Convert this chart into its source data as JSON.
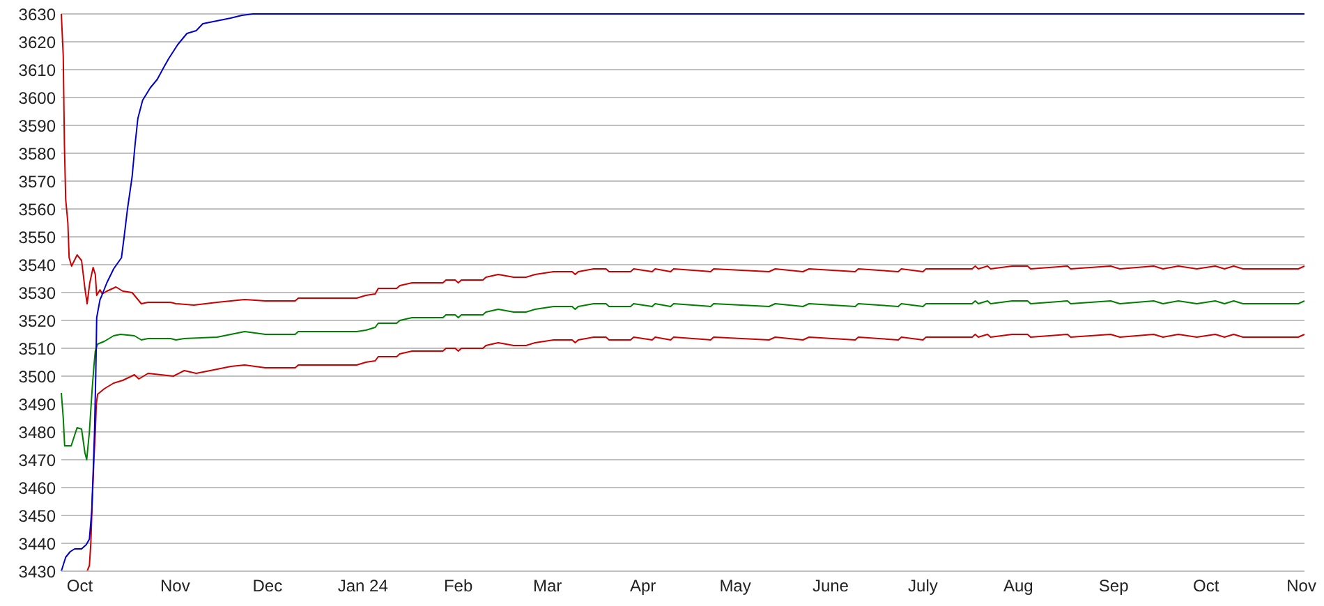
{
  "chart_data": {
    "type": "line",
    "xlim": [
      "2023-09-25",
      "2024-11-02"
    ],
    "xticks": [
      {
        "value": "2023-10-01",
        "label": "Oct"
      },
      {
        "value": "2023-11-01",
        "label": "Nov"
      },
      {
        "value": "2023-12-01",
        "label": "Dec"
      },
      {
        "value": "2024-01-01",
        "label": "Jan 24"
      },
      {
        "value": "2024-02-01",
        "label": "Feb"
      },
      {
        "value": "2024-03-01",
        "label": "Mar"
      },
      {
        "value": "2024-04-01",
        "label": "Apr"
      },
      {
        "value": "2024-05-01",
        "label": "May"
      },
      {
        "value": "2024-06-01",
        "label": "June"
      },
      {
        "value": "2024-07-01",
        "label": "July"
      },
      {
        "value": "2024-08-01",
        "label": "Aug"
      },
      {
        "value": "2024-09-01",
        "label": "Sep"
      },
      {
        "value": "2024-10-01",
        "label": "Oct"
      },
      {
        "value": "2024-11-01",
        "label": "Nov"
      }
    ],
    "ylim": [
      3430,
      3630
    ],
    "yticks": [
      3430,
      3440,
      3450,
      3460,
      3470,
      3480,
      3490,
      3500,
      3510,
      3520,
      3530,
      3540,
      3550,
      3560,
      3570,
      3580,
      3590,
      3600,
      3610,
      3620,
      3630
    ],
    "grid": "y",
    "marker": "none",
    "line_style": "solid",
    "series": [
      {
        "color": "#008000",
        "x": [
          "2023-09-25",
          "2023-09-25T15:00",
          "2023-09-26T02:00",
          "2023-09-28T05:00",
          "2023-09-30T03:00",
          "2023-10-01T14:00",
          "2023-10-02T16:00",
          "2023-10-03T06:00",
          "2023-10-04T03:00",
          "2023-10-05",
          "2023-10-05T14:00",
          "2023-10-06T01:00",
          "2023-10-06T19:00",
          "2023-10-09",
          "2023-10-12",
          "2023-10-14T06:00",
          "2023-10-18T18:00",
          "2023-10-21",
          "2023-10-23T05:00",
          "2023-10-30T12:00",
          "2023-11-01T06:00",
          "2023-11-03T23:00",
          "2023-11-14T16:00",
          "2023-11-23T14:00",
          "2023-11-30T07:00",
          "2023-12-10",
          "2023-12-11",
          "2023-12-30",
          "2024-01-02",
          "2024-01-05",
          "2024-01-06",
          "2024-01-12",
          "2024-01-13",
          "2024-01-17",
          "2024-01-27",
          "2024-01-28",
          "2024-01-31",
          "2024-02-01",
          "2024-02-02",
          "2024-02-09",
          "2024-02-10",
          "2024-02-14",
          "2024-02-19",
          "2024-02-23",
          "2024-02-26",
          "2024-03-03",
          "2024-03-09",
          "2024-03-10",
          "2024-03-11",
          "2024-03-16",
          "2024-03-20",
          "2024-03-21",
          "2024-03-28",
          "2024-03-29",
          "2024-04-04",
          "2024-04-05",
          "2024-04-10",
          "2024-04-11",
          "2024-04-23",
          "2024-04-24",
          "2024-05-12",
          "2024-05-14",
          "2024-05-23",
          "2024-05-25",
          "2024-06-09",
          "2024-06-10",
          "2024-06-23",
          "2024-06-24",
          "2024-07-01",
          "2024-07-02",
          "2024-07-17",
          "2024-07-18",
          "2024-07-19",
          "2024-07-22",
          "2024-07-23",
          "2024-07-30",
          "2024-08-04",
          "2024-08-05",
          "2024-08-17",
          "2024-08-18",
          "2024-08-31",
          "2024-09-03",
          "2024-09-14",
          "2024-09-17",
          "2024-09-22",
          "2024-09-28",
          "2024-10-04",
          "2024-10-07",
          "2024-10-10",
          "2024-10-13",
          "2024-10-31",
          "2024-11-02"
        ],
        "values": [
          3494,
          3485,
          3475,
          3475,
          3481.5,
          3481,
          3472.5,
          3470,
          3480,
          3495,
          3503.5,
          3509,
          3511.5,
          3512.5,
          3514.5,
          3515,
          3514.5,
          3513,
          3513.5,
          3513.5,
          3513,
          3513.5,
          3514,
          3516,
          3515,
          3515,
          3516,
          3516,
          3516.5,
          3517.5,
          3519,
          3519,
          3520,
          3521,
          3521,
          3522,
          3522,
          3521,
          3522,
          3522,
          3523,
          3524,
          3523,
          3523,
          3524,
          3525,
          3525,
          3524,
          3525,
          3526,
          3526,
          3525,
          3525,
          3526,
          3525,
          3526,
          3525,
          3526,
          3525,
          3526,
          3525,
          3526,
          3525,
          3526,
          3525,
          3526,
          3525,
          3526,
          3525,
          3526,
          3526,
          3527,
          3526,
          3527,
          3526,
          3527,
          3527,
          3526,
          3527,
          3526,
          3527,
          3526,
          3527,
          3526,
          3527,
          3526,
          3527,
          3526,
          3527,
          3526,
          3526,
          3527
        ]
      },
      {
        "color": "#cc0000",
        "x": [
          "2023-09-25",
          "2023-09-25T15:00",
          "2023-09-26",
          "2023-09-26T10:00",
          "2023-09-27T03:00",
          "2023-09-27T13:00",
          "2023-09-28T08:00",
          "2023-09-30T03:00",
          "2023-10-01T14:00",
          "2023-10-02T16:00",
          "2023-10-03T09:00",
          "2023-10-04T06:00",
          "2023-10-05T08:00",
          "2023-10-06T01:00",
          "2023-10-06T12:00",
          "2023-10-07T14:00",
          "2023-10-08T07:00",
          "2023-10-09T19:00",
          "2023-10-12T18:00",
          "2023-10-15",
          "2023-10-18",
          "2023-10-21",
          "2023-10-23T05:00",
          "2023-10-30T12:00",
          "2023-11-01T06:00",
          "2023-11-07T02:00",
          "2023-11-14T16:00",
          "2023-11-23T14:00",
          "2023-11-30T07:00",
          "2023-12-10",
          "2023-12-11",
          "2023-12-30",
          "2024-01-02",
          "2024-01-05",
          "2024-01-06",
          "2024-01-12",
          "2024-01-13",
          "2024-01-17",
          "2024-01-27",
          "2024-01-28",
          "2024-01-31",
          "2024-02-01",
          "2024-02-02",
          "2024-02-09",
          "2024-02-10",
          "2024-02-14",
          "2024-02-19",
          "2024-02-23",
          "2024-02-26",
          "2024-03-03",
          "2024-03-09",
          "2024-03-10",
          "2024-03-11",
          "2024-03-16",
          "2024-03-20",
          "2024-03-21",
          "2024-03-28",
          "2024-03-29",
          "2024-04-04",
          "2024-04-05",
          "2024-04-10",
          "2024-04-11",
          "2024-04-23",
          "2024-04-24",
          "2024-05-12",
          "2024-05-14",
          "2024-05-23",
          "2024-05-25",
          "2024-06-09",
          "2024-06-10",
          "2024-06-23",
          "2024-06-24",
          "2024-07-01",
          "2024-07-02",
          "2024-07-17",
          "2024-07-18",
          "2024-07-19",
          "2024-07-22",
          "2024-07-23",
          "2024-07-30",
          "2024-08-04",
          "2024-08-05",
          "2024-08-17",
          "2024-08-18",
          "2024-08-31",
          "2024-09-03",
          "2024-09-14",
          "2024-09-17",
          "2024-09-22",
          "2024-09-28",
          "2024-10-04",
          "2024-10-07",
          "2024-10-10",
          "2024-10-13",
          "2024-10-31",
          "2024-11-02"
        ],
        "values": [
          3630,
          3615,
          3583.5,
          3563.5,
          3555,
          3542.5,
          3539.5,
          3543.5,
          3541.5,
          3531.5,
          3526,
          3533.5,
          3539,
          3536.5,
          3529,
          3531,
          3529.5,
          3530.5,
          3532,
          3530.5,
          3530,
          3526,
          3526.5,
          3526.5,
          3526,
          3525.5,
          3526.5,
          3527.5,
          3527,
          3527,
          3528,
          3528,
          3529,
          3529.5,
          3531.5,
          3531.5,
          3532.5,
          3533.5,
          3533.5,
          3534.5,
          3534.5,
          3533.5,
          3534.5,
          3534.5,
          3535.5,
          3536.5,
          3535.5,
          3535.5,
          3536.5,
          3537.5,
          3537.5,
          3536.5,
          3537.5,
          3538.5,
          3538.5,
          3537.5,
          3537.5,
          3538.5,
          3537.5,
          3538.5,
          3537.5,
          3538.5,
          3537.5,
          3538.5,
          3537.5,
          3538.5,
          3537.5,
          3538.5,
          3537.5,
          3538.5,
          3537.5,
          3538.5,
          3537.5,
          3538.5,
          3538.5,
          3539.5,
          3538.5,
          3539.5,
          3538.5,
          3539.5,
          3539.5,
          3538.5,
          3539.5,
          3538.5,
          3539.5,
          3538.5,
          3539.5,
          3538.5,
          3539.5,
          3538.5,
          3539.5,
          3538.5,
          3539.5,
          3538.5,
          3538.5,
          3539.5
        ]
      },
      {
        "color": "#cc0000",
        "x": [
          "2023-09-25",
          "2023-10-03T09:00",
          "2023-10-04T03:00",
          "2023-10-04T14:00",
          "2023-10-05",
          "2023-10-05T14:00",
          "2023-10-06T01:00",
          "2023-10-06T09:00",
          "2023-10-06T19:00",
          "2023-10-09",
          "2023-10-12",
          "2023-10-15",
          "2023-10-18T18:00",
          "2023-10-20T05:00",
          "2023-10-23T05:00",
          "2023-10-31T09:00",
          "2023-11-03T23:00",
          "2023-11-07T20:00",
          "2023-11-14T16:00",
          "2023-11-19T03:00",
          "2023-11-23T14:00",
          "2023-11-30T07:00",
          "2023-12-10",
          "2023-12-11",
          "2023-12-30",
          "2024-01-02",
          "2024-01-05",
          "2024-01-06",
          "2024-01-12",
          "2024-01-13",
          "2024-01-17",
          "2024-01-27",
          "2024-01-28",
          "2024-01-31",
          "2024-02-01",
          "2024-02-02",
          "2024-02-09",
          "2024-02-10",
          "2024-02-14",
          "2024-02-19",
          "2024-02-23",
          "2024-02-26",
          "2024-03-03",
          "2024-03-09",
          "2024-03-10",
          "2024-03-11",
          "2024-03-16",
          "2024-03-20",
          "2024-03-21",
          "2024-03-28",
          "2024-03-29",
          "2024-04-04",
          "2024-04-05",
          "2024-04-10",
          "2024-04-11",
          "2024-04-23",
          "2024-04-24",
          "2024-05-12",
          "2024-05-14",
          "2024-05-23",
          "2024-05-25",
          "2024-06-09",
          "2024-06-10",
          "2024-06-23",
          "2024-06-24",
          "2024-07-01",
          "2024-07-02",
          "2024-07-17",
          "2024-07-18",
          "2024-07-19",
          "2024-07-22",
          "2024-07-23",
          "2024-07-30",
          "2024-08-04",
          "2024-08-05",
          "2024-08-17",
          "2024-08-18",
          "2024-08-31",
          "2024-09-03",
          "2024-09-14",
          "2024-09-17",
          "2024-09-22",
          "2024-09-28",
          "2024-10-04",
          "2024-10-07",
          "2024-10-10",
          "2024-10-13",
          "2024-10-31",
          "2024-11-02"
        ],
        "values": [
          3430,
          3430,
          3432,
          3440,
          3453.5,
          3470,
          3480,
          3490,
          3493.5,
          3495.5,
          3497.5,
          3498.5,
          3500.5,
          3499,
          3501,
          3500,
          3502,
          3501,
          3502.5,
          3503.5,
          3504,
          3503,
          3503,
          3504,
          3504,
          3505,
          3505.5,
          3507,
          3507,
          3508,
          3509,
          3509,
          3510,
          3510,
          3509,
          3510,
          3510,
          3511,
          3512,
          3511,
          3511,
          3512,
          3513,
          3513,
          3512,
          3513,
          3514,
          3514,
          3513,
          3513,
          3514,
          3513,
          3514,
          3513,
          3514,
          3513,
          3514,
          3513,
          3514,
          3513,
          3514,
          3513,
          3514,
          3513,
          3514,
          3513,
          3514,
          3514,
          3515,
          3514,
          3515,
          3514,
          3515,
          3515,
          3514,
          3515,
          3514,
          3515,
          3514,
          3515,
          3514,
          3515,
          3514,
          3515,
          3514,
          3515,
          3514,
          3514,
          3515
        ]
      },
      {
        "color": "#0000cc",
        "x": [
          "2023-09-25",
          "2023-09-26T10:00",
          "2023-09-27T21:00",
          "2023-09-29T08:00",
          "2023-10-01T14:00",
          "2023-10-03T02:00",
          "2023-10-04T03:00",
          "2023-10-04T21:00",
          "2023-10-05T08:00",
          "2023-10-05T19:00",
          "2023-10-06T05:00",
          "2023-10-06T12:00",
          "2023-10-07T14:00",
          "2023-10-08",
          "2023-10-09T19:00",
          "2023-10-12",
          "2023-10-14T13:00",
          "2023-10-15T10:00",
          "2023-10-16T12:00",
          "2023-10-18",
          "2023-10-19",
          "2023-10-19T21:00",
          "2023-10-21T10:00",
          "2023-10-23T22:00",
          "2023-10-26T04:00",
          "2023-10-28T09:00",
          "2023-10-29T22:00",
          "2023-11-01T20:00",
          "2023-11-04T20:00",
          "2023-11-07T20:00",
          "2023-11-10",
          "2023-11-14T12:00",
          "2023-11-19",
          "2023-11-22T17:00",
          "2023-11-26T07:00",
          "2024-11-02"
        ],
        "values": [
          3430,
          3435,
          3437,
          3438,
          3438,
          3439.5,
          3441.5,
          3451.5,
          3465,
          3480,
          3501.5,
          3521,
          3527.5,
          3528.5,
          3533.5,
          3538.5,
          3542.5,
          3550,
          3560,
          3571.5,
          3583.5,
          3592.5,
          3599,
          3603.5,
          3606.5,
          3611,
          3614,
          3619,
          3623,
          3624,
          3626.5,
          3627.5,
          3628.5,
          3629.5,
          3630,
          3630
        ]
      }
    ]
  }
}
